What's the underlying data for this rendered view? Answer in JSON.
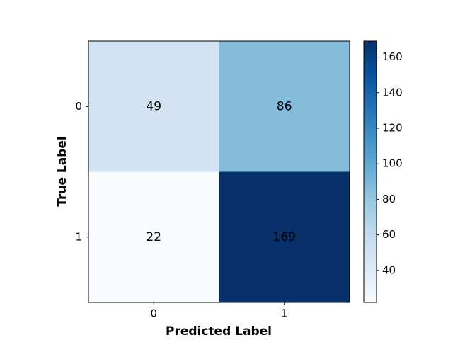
{
  "chart_data": {
    "type": "heatmap",
    "x_label": "Predicted Label",
    "y_label": "True Label",
    "x_categories": [
      "0",
      "1"
    ],
    "y_categories": [
      "0",
      "1"
    ],
    "values": [
      [
        49,
        86
      ],
      [
        22,
        169
      ]
    ],
    "colormap": "Blues",
    "clim": [
      22,
      169
    ],
    "cticks": [
      40,
      60,
      80,
      100,
      120,
      140,
      160
    ]
  }
}
